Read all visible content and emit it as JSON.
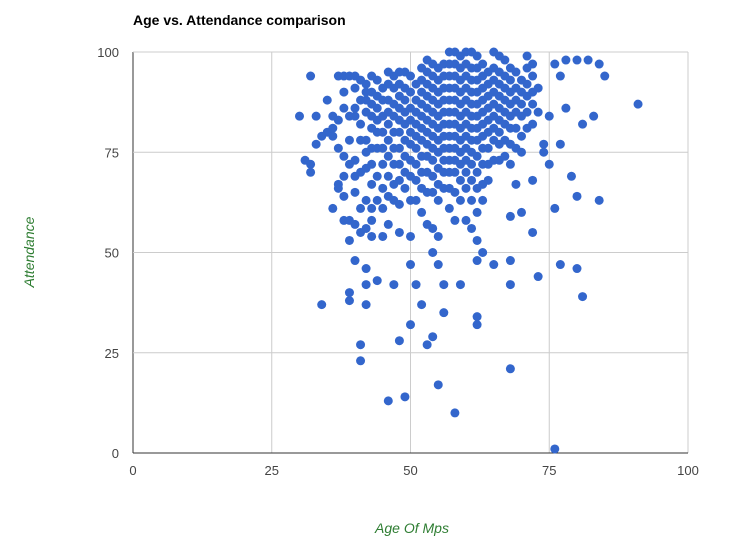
{
  "chart_data": {
    "type": "scatter",
    "title": "Age vs. Attendance comparison",
    "xlabel": "Age Of Mps",
    "ylabel": "Attendance",
    "xlim": [
      0,
      100
    ],
    "ylim": [
      0,
      100
    ],
    "x_ticks": [
      "0",
      "25",
      "50",
      "75",
      "100"
    ],
    "y_ticks": [
      "0",
      "25",
      "50",
      "75",
      "100"
    ],
    "grid": true,
    "legend": "none",
    "colors": {
      "point": "#3366cc",
      "axis_label": "#2e7d32",
      "grid": "#cccccc"
    },
    "points": [
      [
        30,
        84
      ],
      [
        31,
        73
      ],
      [
        32,
        94
      ],
      [
        32,
        72
      ],
      [
        32,
        70
      ],
      [
        33,
        84
      ],
      [
        33,
        77
      ],
      [
        34,
        79
      ],
      [
        34,
        37
      ],
      [
        35,
        88
      ],
      [
        35,
        80
      ],
      [
        36,
        84
      ],
      [
        36,
        61
      ],
      [
        36,
        79
      ],
      [
        36,
        81
      ],
      [
        37,
        94
      ],
      [
        37,
        83
      ],
      [
        37,
        67
      ],
      [
        37,
        66
      ],
      [
        37,
        76
      ],
      [
        38,
        94
      ],
      [
        38,
        90
      ],
      [
        38,
        86
      ],
      [
        38,
        74
      ],
      [
        38,
        69
      ],
      [
        38,
        58
      ],
      [
        38,
        64
      ],
      [
        39,
        94
      ],
      [
        39,
        84
      ],
      [
        39,
        78
      ],
      [
        39,
        72
      ],
      [
        39,
        58
      ],
      [
        39,
        53
      ],
      [
        39,
        40
      ],
      [
        39,
        38
      ],
      [
        40,
        94
      ],
      [
        40,
        91
      ],
      [
        40,
        86
      ],
      [
        40,
        84
      ],
      [
        40,
        73
      ],
      [
        40,
        69
      ],
      [
        40,
        65
      ],
      [
        40,
        57
      ],
      [
        40,
        48
      ],
      [
        41,
        93
      ],
      [
        41,
        88
      ],
      [
        41,
        82
      ],
      [
        41,
        78
      ],
      [
        41,
        70
      ],
      [
        41,
        61
      ],
      [
        41,
        55
      ],
      [
        41,
        27
      ],
      [
        41,
        23
      ],
      [
        42,
        92
      ],
      [
        42,
        90
      ],
      [
        42,
        88
      ],
      [
        42,
        85
      ],
      [
        42,
        78
      ],
      [
        42,
        75
      ],
      [
        42,
        71
      ],
      [
        42,
        63
      ],
      [
        42,
        56
      ],
      [
        42,
        46
      ],
      [
        42,
        42
      ],
      [
        42,
        37
      ],
      [
        43,
        94
      ],
      [
        43,
        90
      ],
      [
        43,
        87
      ],
      [
        43,
        84
      ],
      [
        43,
        81
      ],
      [
        43,
        76
      ],
      [
        43,
        72
      ],
      [
        43,
        67
      ],
      [
        43,
        61
      ],
      [
        43,
        58
      ],
      [
        43,
        54
      ],
      [
        44,
        93
      ],
      [
        44,
        89
      ],
      [
        44,
        86
      ],
      [
        44,
        83
      ],
      [
        44,
        80
      ],
      [
        44,
        76
      ],
      [
        44,
        69
      ],
      [
        44,
        63
      ],
      [
        44,
        43
      ],
      [
        45,
        91
      ],
      [
        45,
        88
      ],
      [
        45,
        84
      ],
      [
        45,
        80
      ],
      [
        45,
        76
      ],
      [
        45,
        72
      ],
      [
        45,
        66
      ],
      [
        45,
        61
      ],
      [
        45,
        54
      ],
      [
        46,
        95
      ],
      [
        46,
        92
      ],
      [
        46,
        88
      ],
      [
        46,
        85
      ],
      [
        46,
        82
      ],
      [
        46,
        78
      ],
      [
        46,
        74
      ],
      [
        46,
        69
      ],
      [
        46,
        64
      ],
      [
        46,
        57
      ],
      [
        46,
        13
      ],
      [
        47,
        94
      ],
      [
        47,
        91
      ],
      [
        47,
        87
      ],
      [
        47,
        84
      ],
      [
        47,
        80
      ],
      [
        47,
        76
      ],
      [
        47,
        72
      ],
      [
        47,
        67
      ],
      [
        47,
        63
      ],
      [
        47,
        42
      ],
      [
        48,
        95
      ],
      [
        48,
        92
      ],
      [
        48,
        89
      ],
      [
        48,
        86
      ],
      [
        48,
        83
      ],
      [
        48,
        80
      ],
      [
        48,
        76
      ],
      [
        48,
        72
      ],
      [
        48,
        68
      ],
      [
        48,
        62
      ],
      [
        48,
        55
      ],
      [
        48,
        28
      ],
      [
        49,
        95
      ],
      [
        49,
        91
      ],
      [
        49,
        88
      ],
      [
        49,
        85
      ],
      [
        49,
        82
      ],
      [
        49,
        78
      ],
      [
        49,
        74
      ],
      [
        49,
        70
      ],
      [
        49,
        66
      ],
      [
        49,
        14
      ],
      [
        50,
        94
      ],
      [
        50,
        90
      ],
      [
        50,
        86
      ],
      [
        50,
        83
      ],
      [
        50,
        80
      ],
      [
        50,
        77
      ],
      [
        50,
        73
      ],
      [
        50,
        69
      ],
      [
        50,
        63
      ],
      [
        50,
        54
      ],
      [
        50,
        47
      ],
      [
        50,
        32
      ],
      [
        51,
        92
      ],
      [
        51,
        88
      ],
      [
        51,
        85
      ],
      [
        51,
        82
      ],
      [
        51,
        79
      ],
      [
        51,
        76
      ],
      [
        51,
        72
      ],
      [
        51,
        68
      ],
      [
        51,
        63
      ],
      [
        51,
        42
      ],
      [
        52,
        96
      ],
      [
        52,
        93
      ],
      [
        52,
        90
      ],
      [
        52,
        87
      ],
      [
        52,
        84
      ],
      [
        52,
        81
      ],
      [
        52,
        78
      ],
      [
        52,
        74
      ],
      [
        52,
        70
      ],
      [
        52,
        66
      ],
      [
        52,
        60
      ],
      [
        52,
        37
      ],
      [
        53,
        98
      ],
      [
        53,
        95
      ],
      [
        53,
        92
      ],
      [
        53,
        89
      ],
      [
        53,
        86
      ],
      [
        53,
        83
      ],
      [
        53,
        80
      ],
      [
        53,
        77
      ],
      [
        53,
        74
      ],
      [
        53,
        70
      ],
      [
        53,
        65
      ],
      [
        53,
        57
      ],
      [
        53,
        27
      ],
      [
        54,
        97
      ],
      [
        54,
        94
      ],
      [
        54,
        91
      ],
      [
        54,
        88
      ],
      [
        54,
        85
      ],
      [
        54,
        82
      ],
      [
        54,
        79
      ],
      [
        54,
        76
      ],
      [
        54,
        73
      ],
      [
        54,
        69
      ],
      [
        54,
        65
      ],
      [
        54,
        56
      ],
      [
        54,
        50
      ],
      [
        54,
        29
      ],
      [
        55,
        96
      ],
      [
        55,
        93
      ],
      [
        55,
        90
      ],
      [
        55,
        87
      ],
      [
        55,
        84
      ],
      [
        55,
        81
      ],
      [
        55,
        78
      ],
      [
        55,
        75
      ],
      [
        55,
        71
      ],
      [
        55,
        67
      ],
      [
        55,
        63
      ],
      [
        55,
        54
      ],
      [
        55,
        47
      ],
      [
        55,
        17
      ],
      [
        56,
        97
      ],
      [
        56,
        94
      ],
      [
        56,
        91
      ],
      [
        56,
        88
      ],
      [
        56,
        85
      ],
      [
        56,
        82
      ],
      [
        56,
        79
      ],
      [
        56,
        76
      ],
      [
        56,
        73
      ],
      [
        56,
        70
      ],
      [
        56,
        66
      ],
      [
        56,
        42
      ],
      [
        56,
        35
      ],
      [
        57,
        100
      ],
      [
        57,
        97
      ],
      [
        57,
        94
      ],
      [
        57,
        91
      ],
      [
        57,
        88
      ],
      [
        57,
        85
      ],
      [
        57,
        82
      ],
      [
        57,
        79
      ],
      [
        57,
        76
      ],
      [
        57,
        73
      ],
      [
        57,
        70
      ],
      [
        57,
        66
      ],
      [
        57,
        61
      ],
      [
        58,
        100
      ],
      [
        58,
        97
      ],
      [
        58,
        94
      ],
      [
        58,
        91
      ],
      [
        58,
        88
      ],
      [
        58,
        85
      ],
      [
        58,
        82
      ],
      [
        58,
        79
      ],
      [
        58,
        76
      ],
      [
        58,
        73
      ],
      [
        58,
        70
      ],
      [
        58,
        65
      ],
      [
        58,
        58
      ],
      [
        58,
        10
      ],
      [
        59,
        99
      ],
      [
        59,
        96
      ],
      [
        59,
        93
      ],
      [
        59,
        90
      ],
      [
        59,
        87
      ],
      [
        59,
        84
      ],
      [
        59,
        81
      ],
      [
        59,
        78
      ],
      [
        59,
        75
      ],
      [
        59,
        72
      ],
      [
        59,
        68
      ],
      [
        59,
        63
      ],
      [
        59,
        42
      ],
      [
        60,
        100
      ],
      [
        60,
        97
      ],
      [
        60,
        94
      ],
      [
        60,
        91
      ],
      [
        60,
        88
      ],
      [
        60,
        85
      ],
      [
        60,
        82
      ],
      [
        60,
        79
      ],
      [
        60,
        76
      ],
      [
        60,
        73
      ],
      [
        60,
        70
      ],
      [
        60,
        66
      ],
      [
        60,
        58
      ],
      [
        61,
        100
      ],
      [
        61,
        96
      ],
      [
        61,
        93
      ],
      [
        61,
        90
      ],
      [
        61,
        87
      ],
      [
        61,
        84
      ],
      [
        61,
        81
      ],
      [
        61,
        78
      ],
      [
        61,
        75
      ],
      [
        61,
        72
      ],
      [
        61,
        68
      ],
      [
        61,
        63
      ],
      [
        61,
        56
      ],
      [
        62,
        99
      ],
      [
        62,
        96
      ],
      [
        62,
        93
      ],
      [
        62,
        90
      ],
      [
        62,
        87
      ],
      [
        62,
        84
      ],
      [
        62,
        81
      ],
      [
        62,
        78
      ],
      [
        62,
        74
      ],
      [
        62,
        70
      ],
      [
        62,
        66
      ],
      [
        62,
        60
      ],
      [
        62,
        53
      ],
      [
        62,
        48
      ],
      [
        62,
        34
      ],
      [
        62,
        32
      ],
      [
        63,
        97
      ],
      [
        63,
        94
      ],
      [
        63,
        91
      ],
      [
        63,
        88
      ],
      [
        63,
        85
      ],
      [
        63,
        82
      ],
      [
        63,
        79
      ],
      [
        63,
        76
      ],
      [
        63,
        72
      ],
      [
        63,
        67
      ],
      [
        63,
        63
      ],
      [
        63,
        50
      ],
      [
        64,
        95
      ],
      [
        64,
        92
      ],
      [
        64,
        89
      ],
      [
        64,
        86
      ],
      [
        64,
        83
      ],
      [
        64,
        80
      ],
      [
        64,
        76
      ],
      [
        64,
        72
      ],
      [
        64,
        68
      ],
      [
        65,
        100
      ],
      [
        65,
        96
      ],
      [
        65,
        93
      ],
      [
        65,
        90
      ],
      [
        65,
        87
      ],
      [
        65,
        84
      ],
      [
        65,
        81
      ],
      [
        65,
        78
      ],
      [
        65,
        73
      ],
      [
        65,
        47
      ],
      [
        66,
        99
      ],
      [
        66,
        95
      ],
      [
        66,
        92
      ],
      [
        66,
        89
      ],
      [
        66,
        86
      ],
      [
        66,
        83
      ],
      [
        66,
        80
      ],
      [
        66,
        77
      ],
      [
        66,
        73
      ],
      [
        67,
        98
      ],
      [
        67,
        94
      ],
      [
        67,
        91
      ],
      [
        67,
        88
      ],
      [
        67,
        85
      ],
      [
        67,
        82
      ],
      [
        67,
        78
      ],
      [
        67,
        74
      ],
      [
        68,
        96
      ],
      [
        68,
        93
      ],
      [
        68,
        90
      ],
      [
        68,
        87
      ],
      [
        68,
        84
      ],
      [
        68,
        81
      ],
      [
        68,
        77
      ],
      [
        68,
        72
      ],
      [
        68,
        59
      ],
      [
        68,
        48
      ],
      [
        68,
        42
      ],
      [
        68,
        21
      ],
      [
        69,
        95
      ],
      [
        69,
        91
      ],
      [
        69,
        88
      ],
      [
        69,
        85
      ],
      [
        69,
        81
      ],
      [
        69,
        76
      ],
      [
        69,
        67
      ],
      [
        70,
        93
      ],
      [
        70,
        90
      ],
      [
        70,
        87
      ],
      [
        70,
        84
      ],
      [
        70,
        79
      ],
      [
        70,
        75
      ],
      [
        70,
        60
      ],
      [
        71,
        99
      ],
      [
        71,
        96
      ],
      [
        71,
        92
      ],
      [
        71,
        89
      ],
      [
        71,
        85
      ],
      [
        71,
        81
      ],
      [
        72,
        97
      ],
      [
        72,
        94
      ],
      [
        72,
        90
      ],
      [
        72,
        87
      ],
      [
        72,
        82
      ],
      [
        72,
        68
      ],
      [
        72,
        55
      ],
      [
        73,
        91
      ],
      [
        73,
        85
      ],
      [
        73,
        44
      ],
      [
        74,
        77
      ],
      [
        74,
        75
      ],
      [
        75,
        84
      ],
      [
        75,
        72
      ],
      [
        76,
        61
      ],
      [
        76,
        97
      ],
      [
        76,
        1
      ],
      [
        77,
        94
      ],
      [
        77,
        77
      ],
      [
        77,
        47
      ],
      [
        78,
        98
      ],
      [
        78,
        86
      ],
      [
        79,
        69
      ],
      [
        80,
        98
      ],
      [
        80,
        64
      ],
      [
        80,
        46
      ],
      [
        81,
        82
      ],
      [
        81,
        39
      ],
      [
        82,
        98
      ],
      [
        83,
        84
      ],
      [
        84,
        97
      ],
      [
        84,
        63
      ],
      [
        85,
        94
      ],
      [
        91,
        87
      ]
    ]
  }
}
